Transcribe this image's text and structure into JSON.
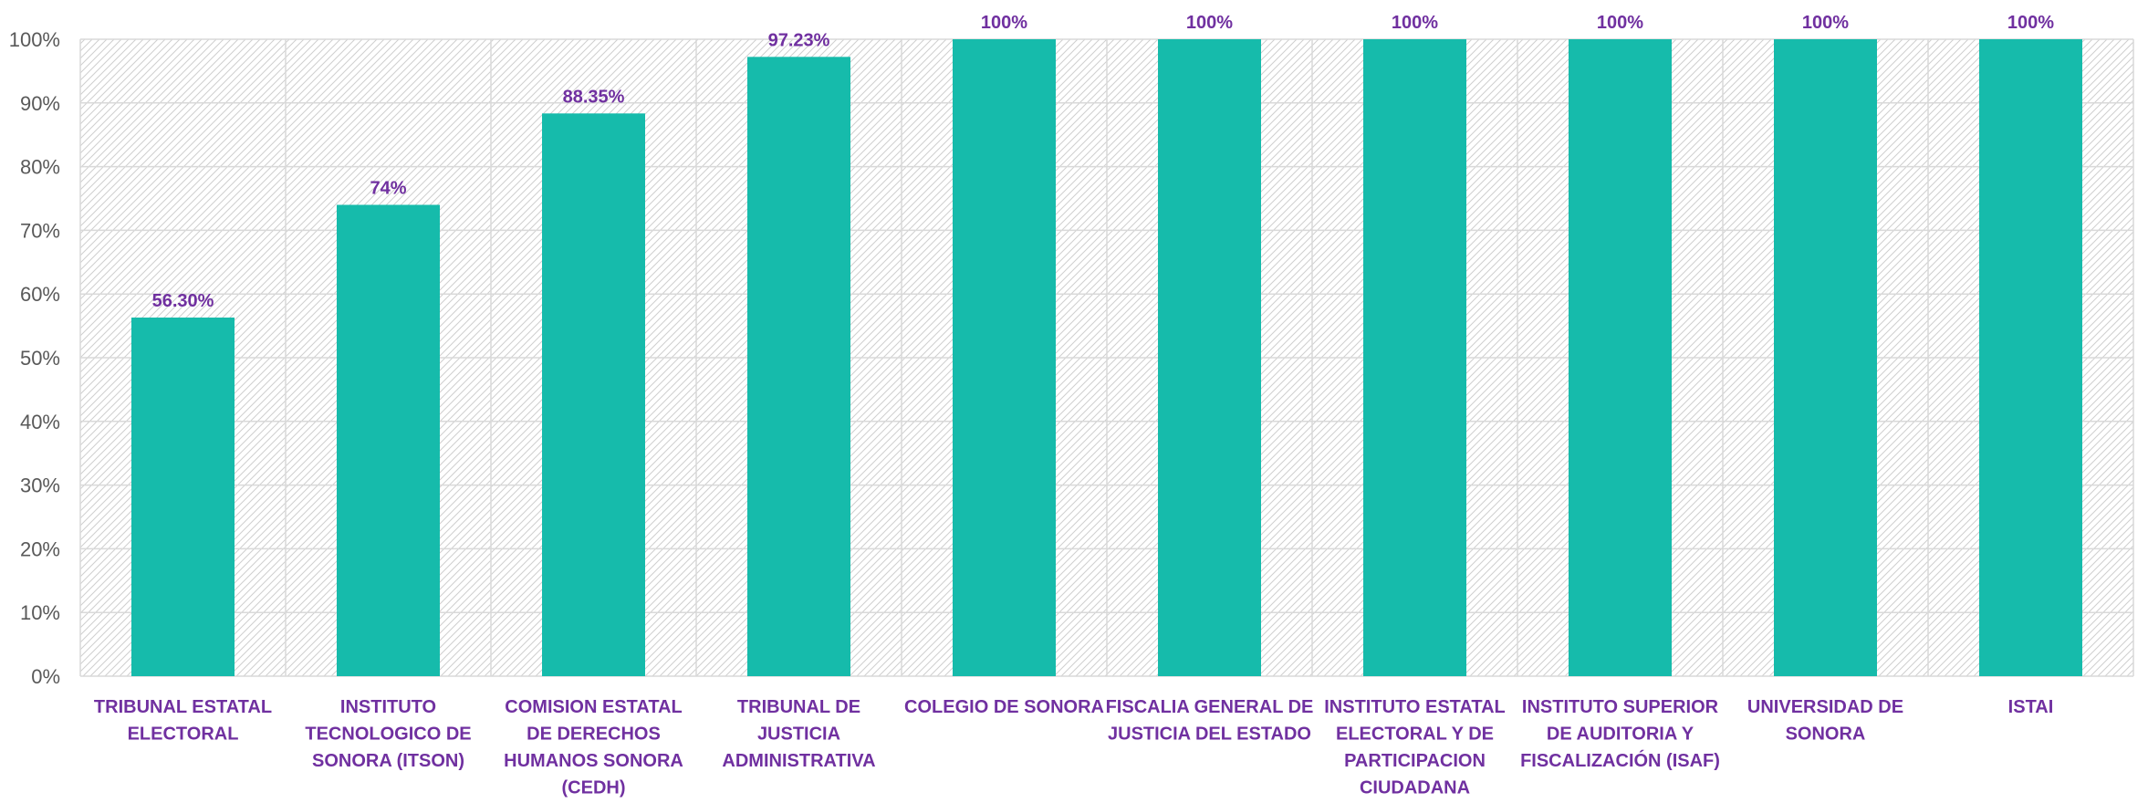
{
  "chart_data": {
    "type": "bar",
    "categories": [
      "TRIBUNAL ESTATAL ELECTORAL",
      "INSTITUTO TECNOLOGICO DE SONORA (ITSON)",
      "COMISION ESTATAL DE DERECHOS HUMANOS SONORA (CEDH)",
      "TRIBUNAL DE JUSTICIA ADMINISTRATIVA",
      "COLEGIO DE SONORA",
      "FISCALIA GENERAL DE JUSTICIA DEL ESTADO",
      "INSTITUTO ESTATAL ELECTORAL Y DE PARTICIPACION CIUDADANA",
      "INSTITUTO SUPERIOR DE AUDITORIA Y FISCALIZACIÓN (ISAF)",
      "UNIVERSIDAD DE SONORA",
      "ISTAI"
    ],
    "category_label_lines": [
      [
        "TRIBUNAL ESTATAL",
        "ELECTORAL"
      ],
      [
        "INSTITUTO",
        "TECNOLOGICO DE",
        "SONORA (ITSON)"
      ],
      [
        "COMISION ESTATAL",
        "DE DERECHOS",
        "HUMANOS SONORA",
        "(CEDH)"
      ],
      [
        "TRIBUNAL DE",
        "JUSTICIA",
        "ADMINISTRATIVA"
      ],
      [
        "COLEGIO DE SONORA"
      ],
      [
        "FISCALIA GENERAL DE",
        "JUSTICIA DEL ESTADO"
      ],
      [
        "INSTITUTO ESTATAL",
        "ELECTORAL Y DE",
        "PARTICIPACION",
        "CIUDADANA"
      ],
      [
        "INSTITUTO SUPERIOR",
        "DE AUDITORIA Y",
        "FISCALIZACIÓN (ISAF)"
      ],
      [
        "UNIVERSIDAD DE",
        "SONORA"
      ],
      [
        "ISTAI"
      ]
    ],
    "values": [
      56.3,
      74,
      88.35,
      97.23,
      100,
      100,
      100,
      100,
      100,
      100
    ],
    "data_labels": [
      "56.30%",
      "74%",
      "88.35%",
      "97.23%",
      "100%",
      "100%",
      "100%",
      "100%",
      "100%",
      "100%"
    ],
    "ylim": [
      0,
      100
    ],
    "y_ticks": [
      "0%",
      "10%",
      "20%",
      "30%",
      "40%",
      "50%",
      "60%",
      "70%",
      "80%",
      "90%",
      "100%"
    ],
    "grid": true,
    "colors": {
      "bar": "#16bbab",
      "label": "#7030a0",
      "grid": "#d9d9d9",
      "hatch": "#c8c8c8",
      "tick": "#595959"
    }
  }
}
